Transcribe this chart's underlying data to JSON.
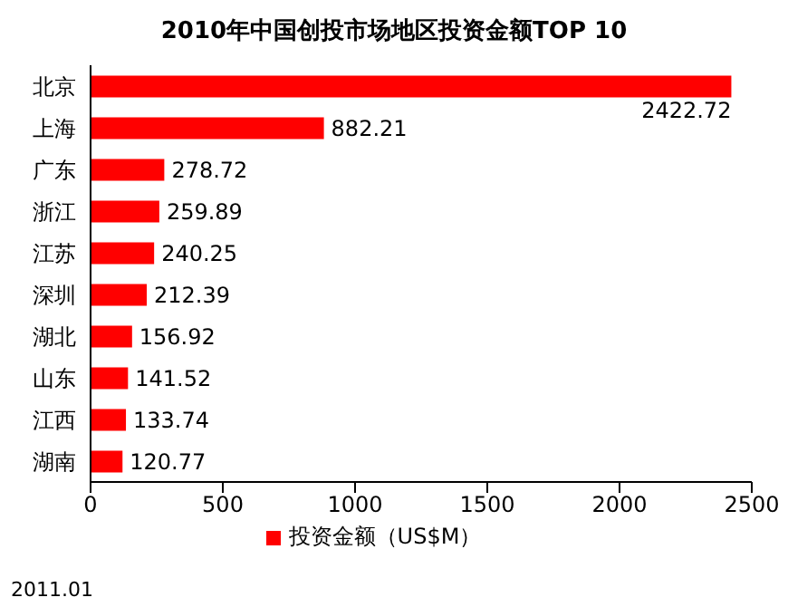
{
  "chart_data": {
    "type": "bar",
    "orientation": "horizontal",
    "title": "2010年中国创投市场地区投资金额TOP 10",
    "categories": [
      "北京",
      "上海",
      "广东",
      "浙江",
      "江苏",
      "深圳",
      "湖北",
      "山东",
      "江西",
      "湖南"
    ],
    "series": [
      {
        "name": "投资金额（US$M）",
        "color": "#ff0000",
        "values": [
          2422.72,
          882.21,
          278.72,
          259.89,
          240.25,
          212.39,
          156.92,
          141.52,
          133.74,
          120.77
        ]
      }
    ],
    "xlim": [
      0,
      2500
    ],
    "xticks": [
      0,
      500,
      1000,
      1500,
      2000,
      2500
    ],
    "data_labels": true,
    "legend": "bottom",
    "grid": false,
    "annotations": [
      "2011.01"
    ]
  }
}
